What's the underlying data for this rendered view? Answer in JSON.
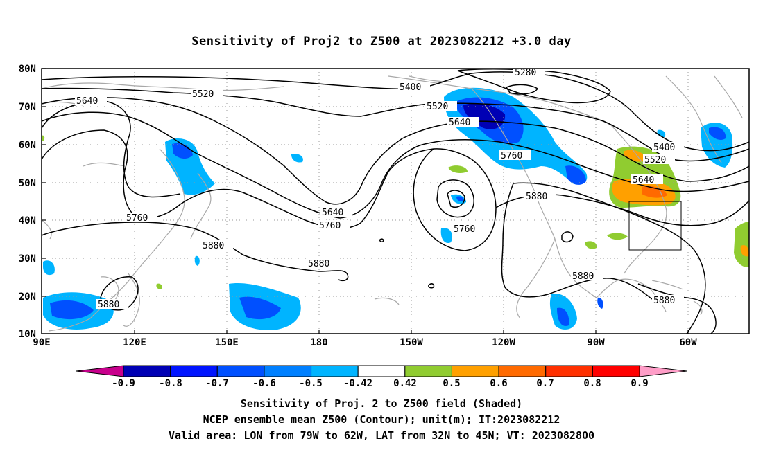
{
  "title": "Sensitivity of Proj2 to Z500 at 2023082212 +3.0 day",
  "lat_labels": [
    "80N",
    "70N",
    "60N",
    "50N",
    "40N",
    "30N",
    "20N",
    "10N"
  ],
  "lon_labels": [
    "90E",
    "120E",
    "150E",
    "180",
    "150W",
    "120W",
    "90W",
    "60W"
  ],
  "contours": {
    "c5280": "5280",
    "c5400a": "5400",
    "c5400b": "5400",
    "c5520a": "5520",
    "c5520b": "5520",
    "c5520c": "5520",
    "c5640a": "5640",
    "c5640b": "5640",
    "c5640c": "5640",
    "c5640d": "5640",
    "c5760a": "5760",
    "c5760b": "5760",
    "c5760c": "5760",
    "c5760d": "5760",
    "c5880a": "5880",
    "c5880b": "5880",
    "c5880c": "5880",
    "c5880d": "5880",
    "c5880e": "5880",
    "c5880f": "5880"
  },
  "colorbar": {
    "labels": [
      "-0.9",
      "-0.8",
      "-0.7",
      "-0.6",
      "-0.5",
      "-0.42",
      "0.42",
      "0.5",
      "0.6",
      "0.7",
      "0.8",
      "0.9"
    ],
    "colors": [
      "#0000b4",
      "#0014ff",
      "#0050ff",
      "#0080ff",
      "#00b4ff",
      "#ffffff",
      "#90cc30",
      "#ffa000",
      "#ff6a00",
      "#ff3000",
      "#ff0000"
    ],
    "left_arrow_color": "#c8008c",
    "right_arrow_color": "#ff9ec8"
  },
  "footer": {
    "line1": "Sensitivity of Proj. 2 to Z500 field (Shaded)",
    "line2": "NCEP ensemble mean Z500 (Contour); unit(m); IT:2023082212",
    "line3": "Valid area: LON from 79W to 62W, LAT from 32N to 45N; VT: 2023082800"
  }
}
